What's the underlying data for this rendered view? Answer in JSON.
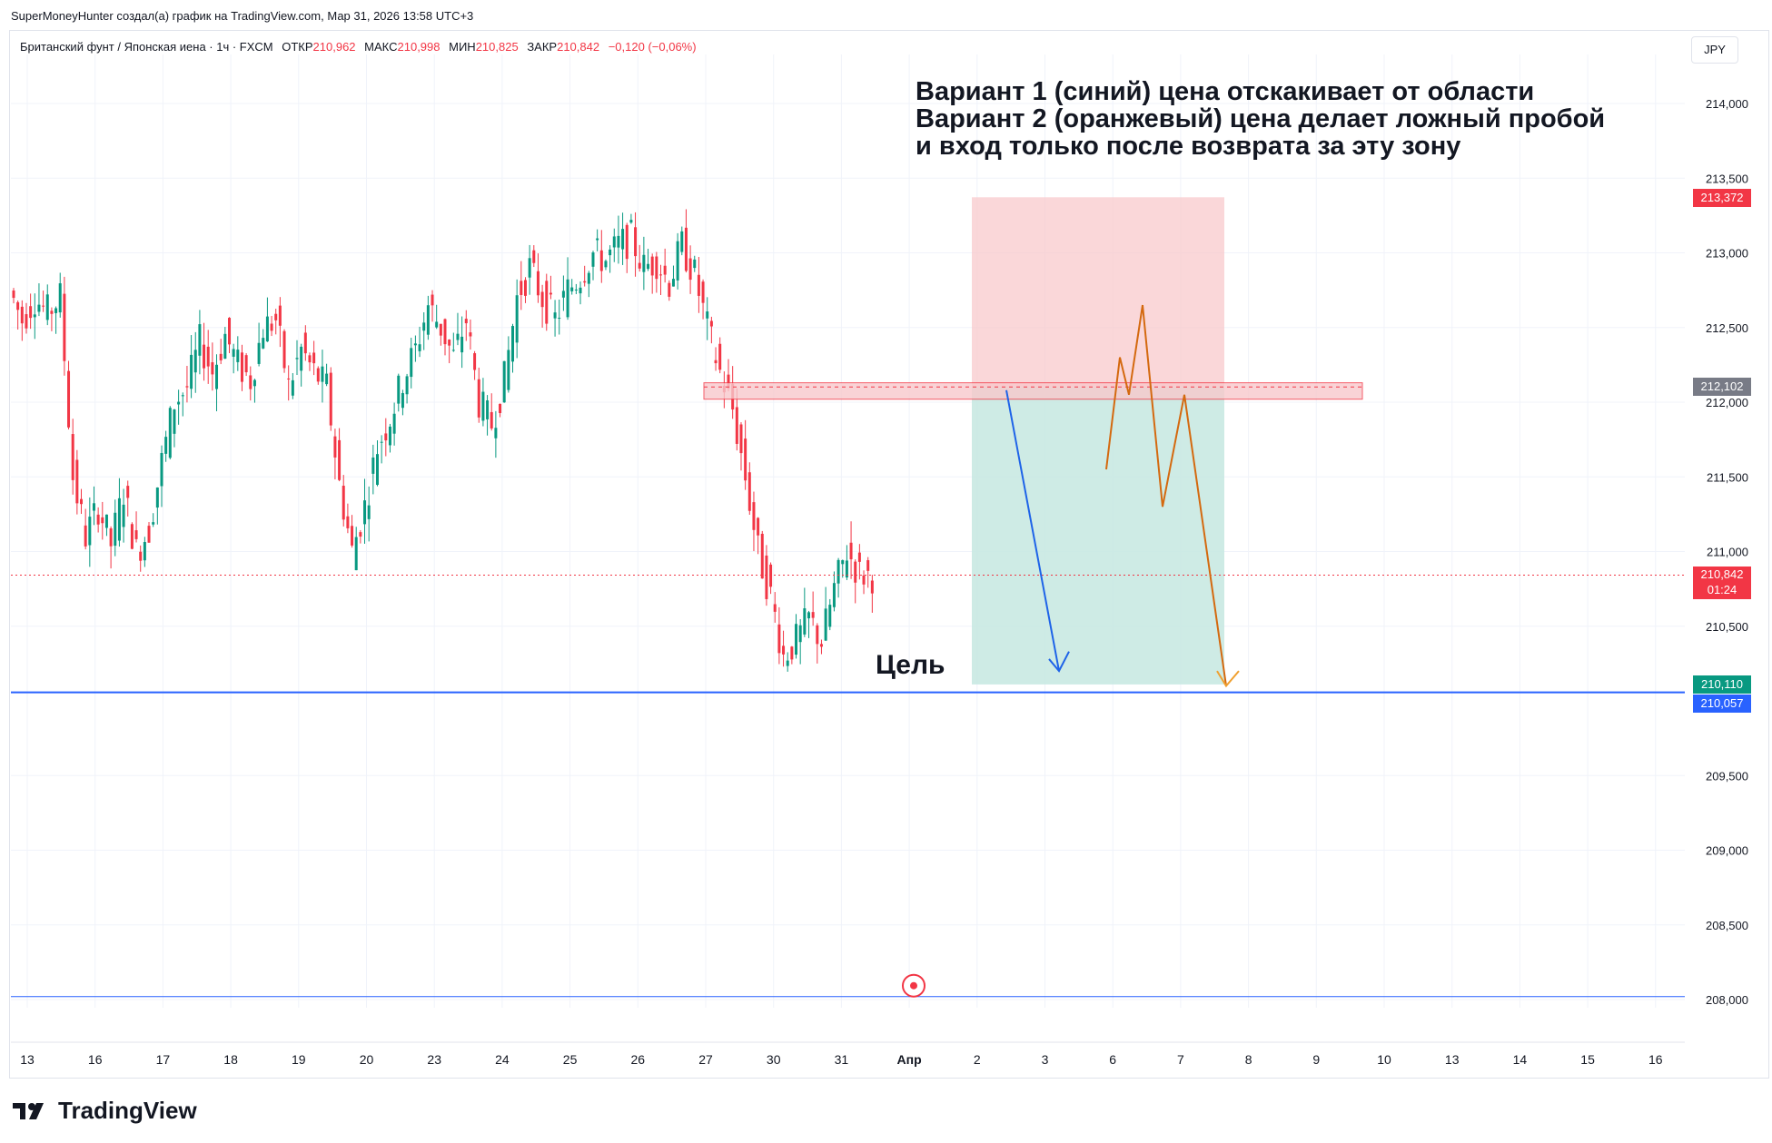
{
  "header": {
    "attribution": "SuperMoneyHunter создал(а) график на TradingView.com, Мар 31, 2026 13:58 UTC+3"
  },
  "legend": {
    "symbol": "Британский фунт / Японская иена · 1ч · FXCM",
    "open_label": "ОТКР",
    "open": "210,962",
    "high_label": "МАКС",
    "high": "210,998",
    "low_label": "МИН",
    "low": "210,825",
    "close_label": "ЗАКР",
    "close": "210,842",
    "change": "−0,120 (−0,06%)"
  },
  "currency": "JPY",
  "annotation": {
    "line1": "Вариант 1 (синий) цена отскакивает от области",
    "line2": "Вариант 2 (оранжевый) цена делает ложный пробой",
    "line3": "и вход только после возврата за эту зону",
    "target": "Цель"
  },
  "price_tags": {
    "stop": "213,372",
    "entry": "212,102",
    "last": "210,842",
    "countdown": "01:24",
    "take_profit": "210,110",
    "target_line": "210,057"
  },
  "brand": {
    "name": "TradingView"
  },
  "colors": {
    "up": "#089981",
    "down": "#f23645",
    "blue_line": "#2962ff",
    "orange_path": "#d4690f",
    "blue_path": "#1e63e8",
    "stop_zone": "#f8c9cc",
    "profit_zone": "#c6e8e0",
    "entry_tag": "#787b86",
    "tp_tag": "#089981",
    "target_tag": "#2962ff"
  },
  "chart_data": {
    "type": "candlestick",
    "title": "Британский фунт / Японская иена · 1ч · FXCM",
    "y_axis": {
      "ticks": [
        "214,000",
        "213,500",
        "213,000",
        "212,500",
        "212,000",
        "211,500",
        "211,000",
        "210,500",
        "209,500",
        "209,000",
        "208,500",
        "208,000"
      ],
      "ylim": [
        207.9,
        214.4
      ]
    },
    "x_axis": {
      "ticks": [
        "13",
        "16",
        "17",
        "18",
        "19",
        "20",
        "23",
        "24",
        "25",
        "26",
        "27",
        "30",
        "31",
        "Апр",
        "2",
        "3",
        "6",
        "7",
        "8",
        "9",
        "10",
        "13",
        "14",
        "15",
        "16"
      ]
    },
    "ohlc_path_close": [
      212.75,
      212.55,
      212.7,
      212.6,
      212.7,
      211.5,
      211.1,
      211.3,
      211.05,
      211.4,
      211.0,
      211.15,
      211.6,
      212.0,
      212.1,
      212.4,
      212.2,
      212.45,
      212.25,
      212.15,
      212.5,
      212.55,
      212.1,
      212.35,
      212.2,
      212.1,
      211.45,
      211.0,
      211.3,
      211.7,
      211.9,
      212.15,
      212.35,
      212.65,
      212.5,
      212.3,
      212.55,
      212.0,
      211.85,
      212.15,
      212.7,
      212.9,
      212.7,
      212.55,
      212.75,
      212.85,
      213.0,
      212.95,
      213.05,
      213.1,
      212.9,
      212.95,
      212.8,
      213.05,
      212.85,
      212.5,
      212.2,
      211.95,
      211.5,
      211.0,
      210.7,
      210.3,
      210.4,
      210.55,
      210.4,
      210.75,
      211.0,
      210.85,
      210.84
    ],
    "levels": {
      "stop": 213.372,
      "entry": 212.102,
      "entry_zone": [
        212.02,
        212.13
      ],
      "last": 210.842,
      "take_profit": 210.11,
      "target_line": 210.057,
      "lower_line": 208.02
    },
    "scenarios": [
      {
        "name": "Вариант 1 (синий)",
        "path": [
          [
            0,
            212.08
          ],
          [
            1,
            210.2
          ]
        ]
      },
      {
        "name": "Вариант 2 (оранжевый)",
        "path": [
          [
            0,
            211.55
          ],
          [
            1,
            212.3
          ],
          [
            2,
            212.05
          ],
          [
            3,
            212.65
          ],
          [
            4,
            211.3
          ],
          [
            5,
            212.05
          ],
          [
            6,
            210.1
          ]
        ]
      }
    ]
  }
}
